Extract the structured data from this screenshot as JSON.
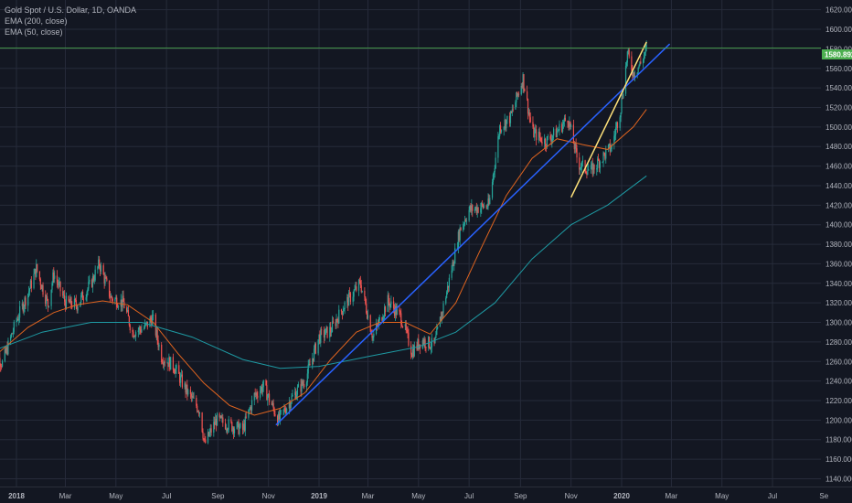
{
  "legend": {
    "symbol": "Gold Spot / U.S. Dollar, 1D, OANDA",
    "ema200": "EMA (200, close)",
    "ema50": "EMA (50, close)"
  },
  "colors": {
    "background": "#131722",
    "grid": "#262b3a",
    "up_candle": "#26a69a",
    "down_candle": "#ef5350",
    "ema200": "#1e9aa3",
    "ema50": "#e0641f",
    "trendline_blue": "#2962ff",
    "trendline_yellow": "#ffe27a",
    "price_line": "#4caf50"
  },
  "price_tag": "1580.892",
  "chart_data": {
    "type": "candlestick",
    "y_axis": {
      "range": [
        1132,
        1630
      ],
      "ticks": [
        "1140.000",
        "1160.000",
        "1180.000",
        "1200.000",
        "1220.000",
        "1240.000",
        "1260.000",
        "1280.000",
        "1300.000",
        "1320.000",
        "1340.000",
        "1360.000",
        "1380.000",
        "1400.000",
        "1420.000",
        "1440.000",
        "1460.000",
        "1480.000",
        "1500.000",
        "1520.000",
        "1540.000",
        "1560.000",
        "1580.000",
        "1600.000",
        "1620.000"
      ]
    },
    "x_axis": {
      "ticks": [
        {
          "label": "2018",
          "date": "2018-01-01",
          "bold": true
        },
        {
          "label": "Mar",
          "date": "2018-03-01"
        },
        {
          "label": "May",
          "date": "2018-05-01"
        },
        {
          "label": "Jul",
          "date": "2018-07-01"
        },
        {
          "label": "Sep",
          "date": "2018-09-01"
        },
        {
          "label": "Nov",
          "date": "2018-11-01"
        },
        {
          "label": "2019",
          "date": "2019-01-01",
          "bold": true
        },
        {
          "label": "Mar",
          "date": "2019-03-01"
        },
        {
          "label": "May",
          "date": "2019-05-01"
        },
        {
          "label": "Jul",
          "date": "2019-07-01"
        },
        {
          "label": "Sep",
          "date": "2019-09-01"
        },
        {
          "label": "Nov",
          "date": "2019-11-01"
        },
        {
          "label": "2020",
          "date": "2020-01-01",
          "bold": true
        },
        {
          "label": "Mar",
          "date": "2020-03-01"
        },
        {
          "label": "May",
          "date": "2020-05-01"
        },
        {
          "label": "Jul",
          "date": "2020-07-01"
        },
        {
          "label": "Se",
          "date": "2020-09-01"
        }
      ]
    },
    "price_close": [
      {
        "x": "2017-12-01",
        "y": 1275
      },
      {
        "x": "2017-12-15",
        "y": 1258
      },
      {
        "x": "2018-01-01",
        "y": 1302
      },
      {
        "x": "2018-01-15",
        "y": 1330
      },
      {
        "x": "2018-01-25",
        "y": 1355
      },
      {
        "x": "2018-02-08",
        "y": 1318
      },
      {
        "x": "2018-02-15",
        "y": 1350
      },
      {
        "x": "2018-03-01",
        "y": 1320
      },
      {
        "x": "2018-03-15",
        "y": 1318
      },
      {
        "x": "2018-04-01",
        "y": 1340
      },
      {
        "x": "2018-04-11",
        "y": 1360
      },
      {
        "x": "2018-04-25",
        "y": 1325
      },
      {
        "x": "2018-05-10",
        "y": 1320
      },
      {
        "x": "2018-05-21",
        "y": 1290
      },
      {
        "x": "2018-06-05",
        "y": 1295
      },
      {
        "x": "2018-06-14",
        "y": 1305
      },
      {
        "x": "2018-06-25",
        "y": 1265
      },
      {
        "x": "2018-07-10",
        "y": 1255
      },
      {
        "x": "2018-07-25",
        "y": 1230
      },
      {
        "x": "2018-08-10",
        "y": 1210
      },
      {
        "x": "2018-08-16",
        "y": 1175
      },
      {
        "x": "2018-08-30",
        "y": 1200
      },
      {
        "x": "2018-09-15",
        "y": 1195
      },
      {
        "x": "2018-10-01",
        "y": 1190
      },
      {
        "x": "2018-10-15",
        "y": 1225
      },
      {
        "x": "2018-10-26",
        "y": 1235
      },
      {
        "x": "2018-11-13",
        "y": 1200
      },
      {
        "x": "2018-12-01",
        "y": 1225
      },
      {
        "x": "2018-12-15",
        "y": 1240
      },
      {
        "x": "2019-01-01",
        "y": 1285
      },
      {
        "x": "2019-01-15",
        "y": 1292
      },
      {
        "x": "2019-02-01",
        "y": 1318
      },
      {
        "x": "2019-02-20",
        "y": 1340
      },
      {
        "x": "2019-03-07",
        "y": 1285
      },
      {
        "x": "2019-03-25",
        "y": 1322
      },
      {
        "x": "2019-04-10",
        "y": 1305
      },
      {
        "x": "2019-04-23",
        "y": 1270
      },
      {
        "x": "2019-05-05",
        "y": 1282
      },
      {
        "x": "2019-05-20",
        "y": 1276
      },
      {
        "x": "2019-06-05",
        "y": 1335
      },
      {
        "x": "2019-06-20",
        "y": 1395
      },
      {
        "x": "2019-07-01",
        "y": 1415
      },
      {
        "x": "2019-07-15",
        "y": 1418
      },
      {
        "x": "2019-07-25",
        "y": 1420
      },
      {
        "x": "2019-08-07",
        "y": 1500
      },
      {
        "x": "2019-08-20",
        "y": 1510
      },
      {
        "x": "2019-09-04",
        "y": 1550
      },
      {
        "x": "2019-09-15",
        "y": 1495
      },
      {
        "x": "2019-10-01",
        "y": 1485
      },
      {
        "x": "2019-10-15",
        "y": 1495
      },
      {
        "x": "2019-10-28",
        "y": 1510
      },
      {
        "x": "2019-11-10",
        "y": 1462
      },
      {
        "x": "2019-11-25",
        "y": 1455
      },
      {
        "x": "2019-12-05",
        "y": 1465
      },
      {
        "x": "2019-12-20",
        "y": 1480
      },
      {
        "x": "2019-12-31",
        "y": 1520
      },
      {
        "x": "2020-01-08",
        "y": 1575
      },
      {
        "x": "2020-01-15",
        "y": 1555
      },
      {
        "x": "2020-01-24",
        "y": 1565
      },
      {
        "x": "2020-01-31",
        "y": 1580
      }
    ],
    "series": [
      {
        "values": [
          {
            "x": "2017-12-01",
            "y": 1262
          },
          {
            "x": "2018-01-15",
            "y": 1295
          },
          {
            "x": "2018-02-15",
            "y": 1310
          },
          {
            "x": "2018-03-15",
            "y": 1318
          },
          {
            "x": "2018-04-15",
            "y": 1322
          },
          {
            "x": "2018-05-15",
            "y": 1318
          },
          {
            "x": "2018-06-15",
            "y": 1300
          },
          {
            "x": "2018-07-15",
            "y": 1268
          },
          {
            "x": "2018-08-15",
            "y": 1238
          },
          {
            "x": "2018-09-15",
            "y": 1215
          },
          {
            "x": "2018-10-15",
            "y": 1205
          },
          {
            "x": "2018-11-15",
            "y": 1212
          },
          {
            "x": "2018-12-15",
            "y": 1228
          },
          {
            "x": "2019-01-15",
            "y": 1262
          },
          {
            "x": "2019-02-15",
            "y": 1290
          },
          {
            "x": "2019-03-15",
            "y": 1300
          },
          {
            "x": "2019-04-15",
            "y": 1300
          },
          {
            "x": "2019-05-15",
            "y": 1288
          },
          {
            "x": "2019-06-15",
            "y": 1320
          },
          {
            "x": "2019-07-15",
            "y": 1375
          },
          {
            "x": "2019-08-15",
            "y": 1430
          },
          {
            "x": "2019-09-15",
            "y": 1468
          },
          {
            "x": "2019-10-15",
            "y": 1488
          },
          {
            "x": "2019-11-15",
            "y": 1482
          },
          {
            "x": "2019-12-15",
            "y": 1477
          },
          {
            "x": "2020-01-15",
            "y": 1500
          },
          {
            "x": "2020-01-31",
            "y": 1518
          }
        ]
      },
      {
        "values": [
          {
            "x": "2017-12-01",
            "y": 1270
          },
          {
            "x": "2018-02-01",
            "y": 1290
          },
          {
            "x": "2018-04-01",
            "y": 1300
          },
          {
            "x": "2018-06-01",
            "y": 1300
          },
          {
            "x": "2018-08-01",
            "y": 1285
          },
          {
            "x": "2018-10-01",
            "y": 1262
          },
          {
            "x": "2018-11-15",
            "y": 1253
          },
          {
            "x": "2019-01-01",
            "y": 1255
          },
          {
            "x": "2019-03-01",
            "y": 1265
          },
          {
            "x": "2019-05-01",
            "y": 1275
          },
          {
            "x": "2019-06-15",
            "y": 1290
          },
          {
            "x": "2019-08-01",
            "y": 1320
          },
          {
            "x": "2019-09-15",
            "y": 1365
          },
          {
            "x": "2019-11-01",
            "y": 1400
          },
          {
            "x": "2019-12-15",
            "y": 1420
          },
          {
            "x": "2020-01-31",
            "y": 1450
          }
        ]
      }
    ],
    "trendlines": [
      {
        "x": [
          "2018-11-10",
          "2020-02-28"
        ],
        "y": [
          1195,
          1585
        ]
      },
      {
        "x": [
          "2019-11-01",
          "2020-01-31"
        ],
        "y": [
          1428,
          1587
        ]
      }
    ],
    "current_price": 1580.892,
    "grid": true
  }
}
